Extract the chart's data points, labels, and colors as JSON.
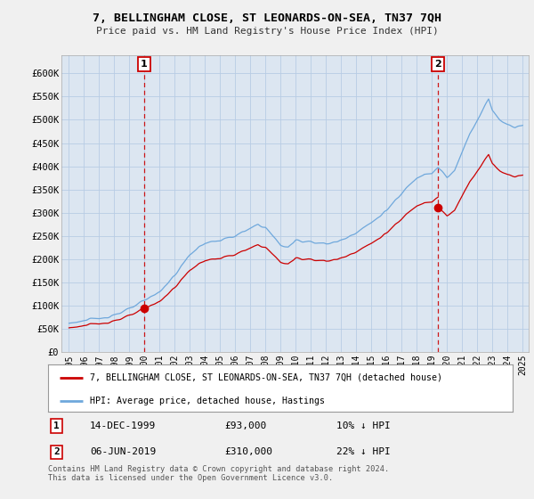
{
  "title": "7, BELLINGHAM CLOSE, ST LEONARDS-ON-SEA, TN37 7QH",
  "subtitle": "Price paid vs. HM Land Registry's House Price Index (HPI)",
  "ylabel_ticks": [
    "£0",
    "£50K",
    "£100K",
    "£150K",
    "£200K",
    "£250K",
    "£300K",
    "£350K",
    "£400K",
    "£450K",
    "£500K",
    "£550K",
    "£600K"
  ],
  "ytick_values": [
    0,
    50000,
    100000,
    150000,
    200000,
    250000,
    300000,
    350000,
    400000,
    450000,
    500000,
    550000,
    600000
  ],
  "hpi_color": "#6fa8dc",
  "price_color": "#cc0000",
  "dashed_color": "#cc0000",
  "background_color": "#f0f0f0",
  "plot_bg_color": "#dce6f1",
  "grid_color": "#b8cce4",
  "sale1_year": 1999.958,
  "sale1_price": 93000,
  "sale2_year": 2019.417,
  "sale2_price": 310000,
  "annotation1": {
    "date": "14-DEC-1999",
    "price": "£93,000",
    "pct": "10% ↓ HPI"
  },
  "annotation2": {
    "date": "06-JUN-2019",
    "price": "£310,000",
    "pct": "22% ↓ HPI"
  },
  "legend1": "7, BELLINGHAM CLOSE, ST LEONARDS-ON-SEA, TN37 7QH (detached house)",
  "legend2": "HPI: Average price, detached house, Hastings",
  "footer": "Contains HM Land Registry data © Crown copyright and database right 2024.\nThis data is licensed under the Open Government Licence v3.0."
}
